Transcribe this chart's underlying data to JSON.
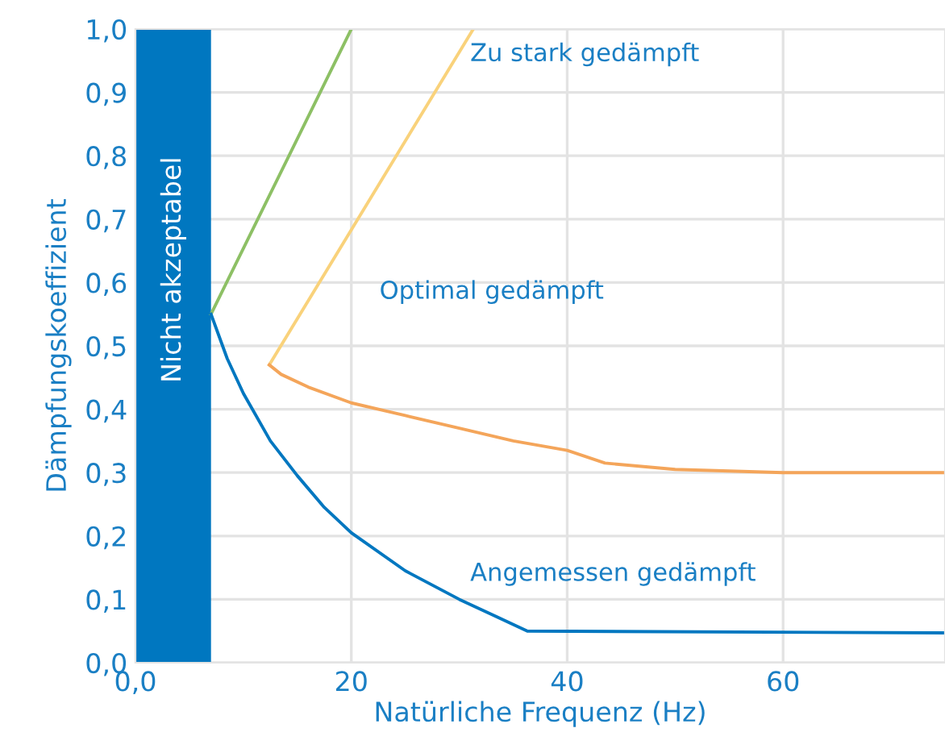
{
  "chart_data": {
    "type": "line",
    "xlabel": "Natürliche Frequenz (Hz)",
    "ylabel": "Dämpfungskoeffizient",
    "xlim": [
      0,
      75
    ],
    "ylim": [
      0,
      1
    ],
    "xticks": [
      {
        "value": 0,
        "label": "0,0"
      },
      20,
      40,
      60
    ],
    "yticks": [
      {
        "value": 0,
        "label": "0,0"
      },
      {
        "value": 0.1,
        "label": "0,1"
      },
      {
        "value": 0.2,
        "label": "0,2"
      },
      {
        "value": 0.3,
        "label": "0,3"
      },
      {
        "value": 0.4,
        "label": "0,4"
      },
      {
        "value": 0.5,
        "label": "0,5"
      },
      {
        "value": 0.6,
        "label": "0,6"
      },
      {
        "value": 0.7,
        "label": "0,7"
      },
      {
        "value": 0.8,
        "label": "0,8"
      },
      {
        "value": 0.9,
        "label": "0,9"
      },
      {
        "value": 1.0,
        "label": "1,0"
      }
    ],
    "grid": true,
    "legend": false,
    "line_style": "solid",
    "marker": "none",
    "series": [
      {
        "color": "#8dc065",
        "x": [
          7,
          20
        ],
        "values": [
          0.55,
          1.0
        ]
      },
      {
        "color": "#f9d27b",
        "x": [
          12.4,
          31.3
        ],
        "values": [
          0.47,
          1.0
        ]
      },
      {
        "color": "#f4a55a",
        "x": [
          12.4,
          13.5,
          16,
          20,
          25,
          30,
          35,
          40,
          43.5,
          50,
          60,
          75
        ],
        "values": [
          0.47,
          0.455,
          0.435,
          0.41,
          0.39,
          0.37,
          0.35,
          0.335,
          0.315,
          0.305,
          0.3,
          0.3
        ]
      },
      {
        "color": "#0077c0",
        "x": [
          7,
          8.5,
          10,
          12.5,
          15,
          17.5,
          20,
          25,
          30,
          36.3,
          75
        ],
        "values": [
          0.55,
          0.48,
          0.425,
          0.35,
          0.295,
          0.245,
          0.205,
          0.145,
          0.1,
          0.05,
          0.047
        ]
      }
    ],
    "bands": [
      {
        "axis": "x",
        "from": 0,
        "to": 7,
        "label": "Nicht akzeptabel",
        "color": "#0077c0"
      }
    ],
    "annotations": [
      "Zu stark gedämpft",
      "Optimal gedämpft",
      "Angemessen gedämpft"
    ]
  }
}
